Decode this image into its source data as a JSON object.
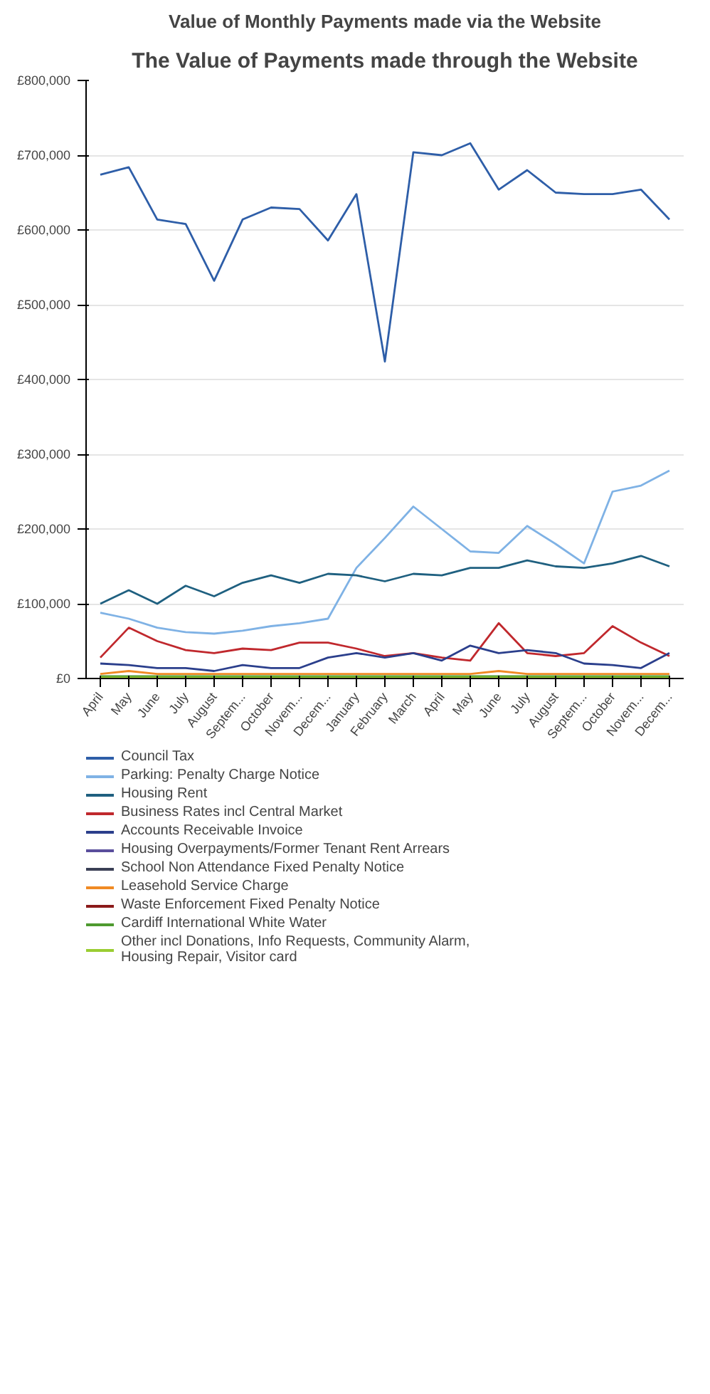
{
  "chart_data": {
    "type": "line",
    "title": "The Value of Payments made through the Website",
    "subtitle": "Value of Monthly Payments made via the Website",
    "categories": [
      "April",
      "May",
      "June",
      "July",
      "August",
      "Septem...",
      "October",
      "Novem...",
      "Decem...",
      "January",
      "February",
      "March",
      "April",
      "May",
      "June",
      "July",
      "August",
      "Septem...",
      "October",
      "Novem...",
      "Decem..."
    ],
    "ylim": [
      0,
      800000
    ],
    "yticks": [
      {
        "value": 0,
        "label": "£0"
      },
      {
        "value": 100000,
        "label": "£100,000"
      },
      {
        "value": 200000,
        "label": "£200,000"
      },
      {
        "value": 300000,
        "label": "£300,000"
      },
      {
        "value": 400000,
        "label": "£400,000"
      },
      {
        "value": 500000,
        "label": "£500,000"
      },
      {
        "value": 600000,
        "label": "£600,000"
      },
      {
        "value": 700000,
        "label": "£700,000"
      },
      {
        "value": 800000,
        "label": "£800,000"
      }
    ],
    "grid": "y",
    "legend": "bottom",
    "marker": "none",
    "line_style": "solid",
    "series": [
      {
        "name": "Council Tax",
        "color": "#2e5ea8",
        "values": [
          674000,
          684000,
          614000,
          608000,
          532000,
          614000,
          630000,
          628000,
          586000,
          648000,
          424000,
          704000,
          700000,
          716000,
          654000,
          680000,
          650000,
          648000,
          648000,
          654000,
          614000
        ]
      },
      {
        "name": "Parking: Penalty Charge Notice",
        "color": "#7fb2e5",
        "values": [
          88000,
          80000,
          68000,
          62000,
          60000,
          64000,
          70000,
          74000,
          80000,
          148000,
          188000,
          230000,
          200000,
          170000,
          168000,
          204000,
          180000,
          154000,
          250000,
          258000,
          278000
        ]
      },
      {
        "name": "Housing Rent",
        "color": "#1f6080",
        "values": [
          100000,
          118000,
          100000,
          124000,
          110000,
          128000,
          138000,
          128000,
          140000,
          138000,
          130000,
          140000,
          138000,
          148000,
          148000,
          158000,
          150000,
          148000,
          154000,
          164000,
          150000
        ]
      },
      {
        "name": "Business Rates incl Central Market",
        "color": "#c0282d",
        "values": [
          28000,
          68000,
          50000,
          38000,
          34000,
          40000,
          38000,
          48000,
          48000,
          40000,
          30000,
          34000,
          28000,
          24000,
          74000,
          34000,
          30000,
          34000,
          70000,
          48000,
          30000
        ]
      },
      {
        "name": "Accounts Receivable Invoice",
        "color": "#2b3f8c",
        "values": [
          20000,
          18000,
          14000,
          14000,
          10000,
          18000,
          14000,
          14000,
          28000,
          34000,
          28000,
          34000,
          24000,
          44000,
          34000,
          38000,
          34000,
          20000,
          18000,
          14000,
          34000
        ]
      },
      {
        "name": "Housing Overpayments/Former Tenant Rent Arrears",
        "color": "#5a4e9c",
        "values": [
          null,
          null,
          null,
          null,
          null,
          null,
          null,
          null,
          null,
          null,
          null,
          null,
          null,
          null,
          null,
          null,
          null,
          null,
          null,
          null,
          null
        ]
      },
      {
        "name": "School Non Attendance Fixed Penalty Notice",
        "color": "#3a3f55",
        "values": [
          null,
          null,
          null,
          null,
          null,
          null,
          null,
          null,
          null,
          null,
          null,
          null,
          null,
          null,
          null,
          null,
          null,
          null,
          null,
          null,
          null
        ]
      },
      {
        "name": "Leasehold Service Charge",
        "color": "#f08a24",
        "values": [
          6000,
          10000,
          6000,
          6000,
          6000,
          6000,
          6000,
          6000,
          6000,
          6000,
          6000,
          6000,
          6000,
          6000,
          10000,
          6000,
          6000,
          6000,
          6000,
          6000,
          6000
        ]
      },
      {
        "name": "Waste Enforcement Fixed Penalty Notice",
        "color": "#8b1a1a",
        "values": [
          null,
          null,
          null,
          null,
          null,
          null,
          null,
          null,
          null,
          null,
          null,
          null,
          null,
          null,
          null,
          null,
          null,
          null,
          null,
          null,
          null
        ]
      },
      {
        "name": "Cardiff International White Water",
        "color": "#4e9a2f",
        "values": [
          3000,
          3000,
          3000,
          3000,
          3000,
          3000,
          3000,
          3000,
          3000,
          3000,
          3000,
          3000,
          3000,
          3000,
          3000,
          3000,
          3000,
          3000,
          3000,
          3000,
          3000
        ]
      },
      {
        "name": "Other incl Donations, Info Requests, Community Alarm, Housing Repair, Visitor card",
        "color": "#9acd32",
        "values": [
          1000,
          1000,
          1000,
          1000,
          1000,
          1000,
          1000,
          1000,
          1000,
          1000,
          1000,
          1000,
          1000,
          1000,
          1000,
          1000,
          1000,
          1000,
          1000,
          1000,
          1000
        ]
      }
    ]
  }
}
